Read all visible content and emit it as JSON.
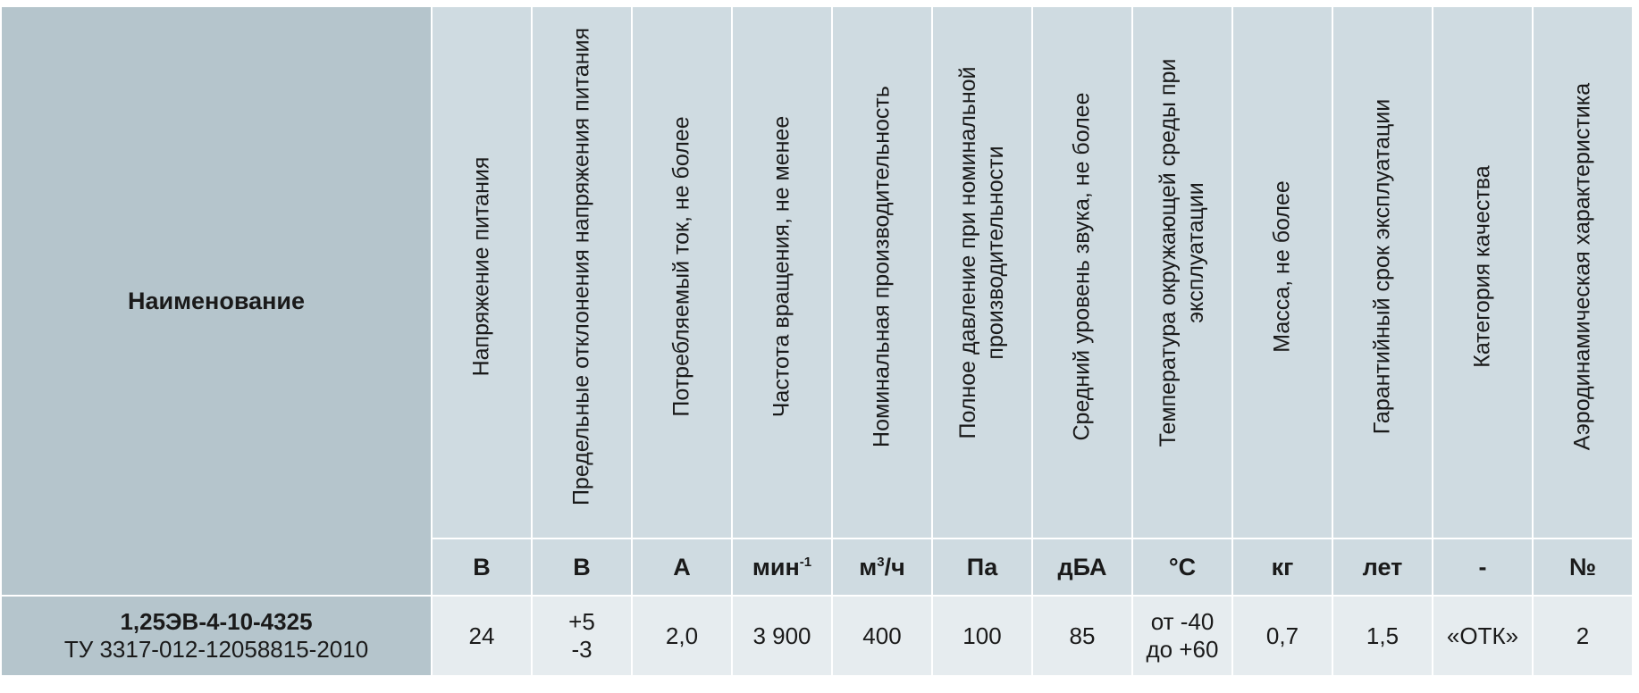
{
  "header": {
    "name_label": "Наименование",
    "columns": [
      {
        "title": "Напряжение питания",
        "unit": "В"
      },
      {
        "title": "Предельные отклонения напряжения питания",
        "unit": "В"
      },
      {
        "title": "Потребляемый ток, не более",
        "unit": "А"
      },
      {
        "title": "Частота вращения, не менее",
        "unit": "мин",
        "unit_sup": "-1"
      },
      {
        "title": "Номинальная производительность",
        "unit": "м",
        "unit_sup": "3",
        "unit_suffix": "/ч"
      },
      {
        "title": "Полное давление при номинальной производительности",
        "unit": "Па"
      },
      {
        "title": "Средний уровень звука, не более",
        "unit": "дБА"
      },
      {
        "title": "Температура окружающей среды при эксплуатации",
        "unit": "°С"
      },
      {
        "title": "Масса, не более",
        "unit": "кг"
      },
      {
        "title": "Гарантийный срок эксплуатации",
        "unit": "лет"
      },
      {
        "title": "Категория качества",
        "unit": "-"
      },
      {
        "title": "Аэродинамическая характеристика",
        "unit": "№"
      }
    ]
  },
  "row": {
    "model": "1,25ЭВ-4-10-4325",
    "spec": "ТУ 3317-012-12058815-2010",
    "values": {
      "voltage": "24",
      "dev_plus": "+5",
      "dev_minus": "-3",
      "current": "2,0",
      "rpm": "3 900",
      "flow": "400",
      "pressure": "100",
      "noise": "85",
      "temp_min": "от -40",
      "temp_max": "до +60",
      "mass": "0,7",
      "warranty": "1,5",
      "quality": "«ОТК»",
      "aero": "2"
    }
  }
}
